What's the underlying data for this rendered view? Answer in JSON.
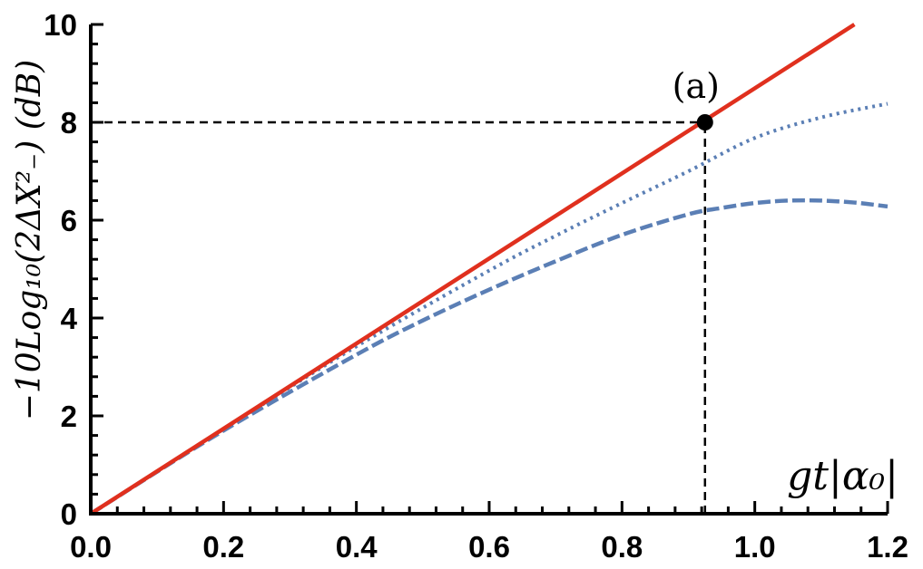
{
  "chart_data": {
    "type": "line",
    "title": "",
    "xlabel": "gt|α₀|",
    "ylabel": "−10Log₁₀(2ΔX²₋) (dB)",
    "xlim": [
      0,
      1.2
    ],
    "ylim": [
      0,
      10
    ],
    "x_ticks": [
      "0.0",
      "0.2",
      "0.4",
      "0.6",
      "0.8",
      "1.0",
      "1.2"
    ],
    "y_ticks": [
      "0",
      "2",
      "4",
      "6",
      "8",
      "10"
    ],
    "grid": false,
    "series": [
      {
        "style": "solid",
        "color": "#e0301e",
        "x": [
          0.0,
          1.15
        ],
        "y": [
          0.0,
          10.0
        ]
      },
      {
        "style": "dotted",
        "color": "#5b7fb5",
        "x": [
          0.0,
          0.2,
          0.4,
          0.6,
          0.7,
          0.8,
          0.9,
          1.0,
          1.1,
          1.2
        ],
        "y": [
          0.0,
          1.73,
          3.42,
          4.97,
          5.68,
          6.35,
          7.0,
          7.68,
          8.1,
          8.38
        ]
      },
      {
        "style": "dashed",
        "color": "#5b7fb5",
        "x": [
          0.0,
          0.2,
          0.4,
          0.5,
          0.6,
          0.7,
          0.8,
          0.9,
          0.95,
          1.0,
          1.05,
          1.1,
          1.15,
          1.2
        ],
        "y": [
          0.0,
          1.7,
          3.25,
          3.95,
          4.58,
          5.16,
          5.7,
          6.12,
          6.25,
          6.35,
          6.4,
          6.4,
          6.36,
          6.28
        ]
      }
    ],
    "marked_point": {
      "label": "(a)",
      "x": 0.925,
      "y": 8.0
    },
    "reference_lines": [
      {
        "orientation": "horizontal",
        "y": 8.0,
        "x_end": 0.925,
        "style": "dashed",
        "color": "#000000"
      },
      {
        "orientation": "vertical",
        "x": 0.925,
        "y_end": 8.0,
        "style": "dashed",
        "color": "#000000"
      }
    ]
  }
}
